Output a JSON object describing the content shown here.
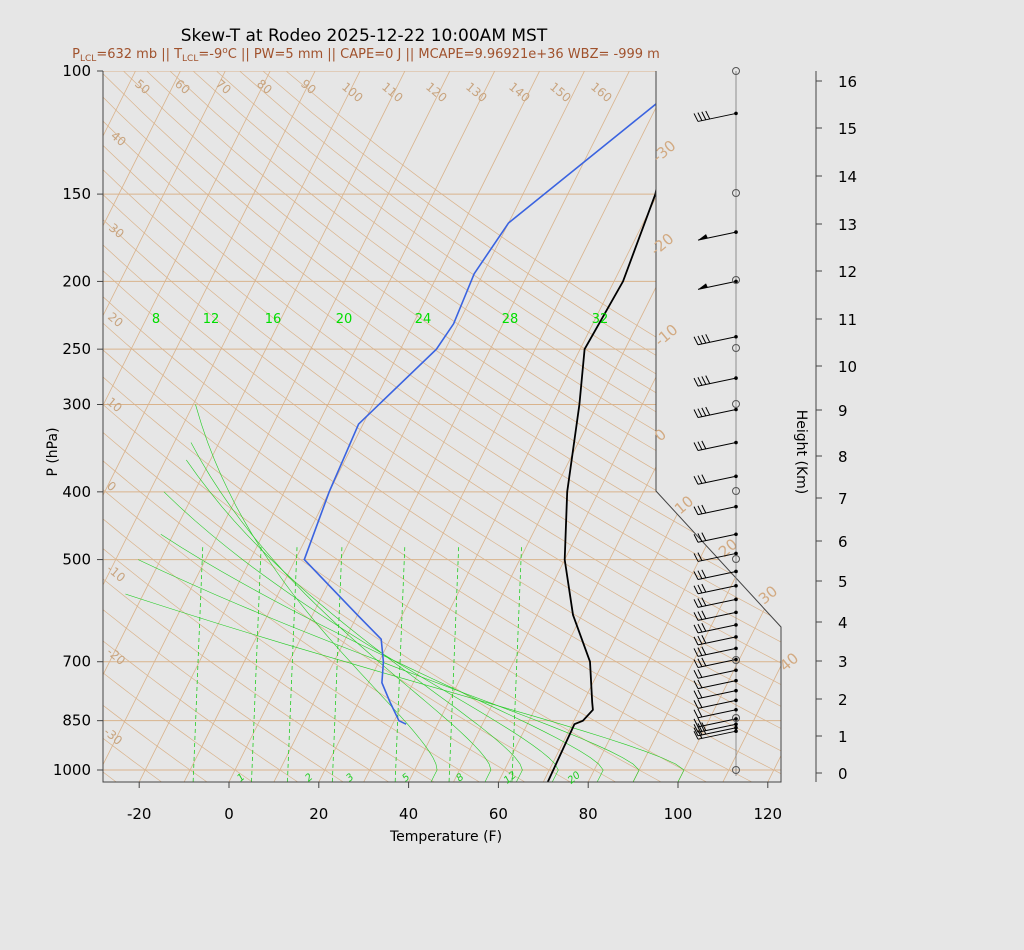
{
  "title": "Skew-T at Rodeo 2025-12-22 10:00AM MST",
  "subtitle": {
    "lcl_p_prefix": "P",
    "lcl_p_sub": "LCL",
    "lcl_p_text": "=632 mb || ",
    "lcl_t_prefix": "T",
    "lcl_t_sub": "LCL",
    "lcl_t_text": "=-9",
    "deg": "o",
    "rest": "C || PW=5 mm || CAPE=0 J || MCAPE=9.96921e+36 WBZ= -999 m"
  },
  "colors": {
    "temperature": "#000000",
    "dewpoint": "#3a63e0",
    "isotherm": "#d9b38c",
    "mixing_ratio": "#22cc22",
    "wind": "#000000"
  },
  "chart_data": {
    "type": "skew-t",
    "xlabel": "Temperature (F)",
    "ylabel": "P (hPa)",
    "y2label": "Height (Km)",
    "xlim": [
      -28,
      125
    ],
    "x_ticks": [
      -20,
      0,
      20,
      40,
      60,
      80,
      100,
      120
    ],
    "ylim_hpa": [
      1040,
      100
    ],
    "y_ticks": [
      100,
      150,
      200,
      250,
      300,
      400,
      500,
      700,
      850,
      1000
    ],
    "height_ticks_km": [
      0,
      1,
      2,
      3,
      4,
      5,
      6,
      7,
      8,
      9,
      10,
      11,
      12,
      13,
      14,
      15,
      16
    ],
    "mixing_ratio_top_labels": [
      "8",
      "12",
      "16",
      "20",
      "24",
      "28",
      "32"
    ],
    "mixing_ratio_bottom_labels": [
      "1",
      "2",
      "3",
      "5",
      "8",
      "12",
      "20"
    ],
    "isotherm_labels_top": [
      "50",
      "60",
      "70",
      "80",
      "90",
      "100",
      "110",
      "120",
      "130",
      "140",
      "150",
      "160"
    ],
    "isotherm_labels_left": [
      "40",
      "30",
      "20",
      "10",
      "0",
      "-10",
      "-20",
      "-30"
    ],
    "isotherm_labels_right": [
      "-30",
      "-20",
      "-10",
      "0",
      "10",
      "20",
      "30",
      "40"
    ],
    "series": [
      {
        "points": [
          [
            1040,
            71
          ],
          [
            860,
            70.5
          ],
          [
            850,
            72
          ],
          [
            820,
            73
          ],
          [
            800,
            72
          ],
          [
            700,
            67
          ],
          [
            600,
            58
          ],
          [
            500,
            50
          ],
          [
            400,
            43
          ],
          [
            300,
            36
          ],
          [
            250,
            31
          ],
          [
            200,
            32
          ],
          [
            150,
            29.5
          ],
          [
            120,
            25
          ],
          [
            100,
            22
          ]
        ]
      },
      {
        "points": [
          [
            860,
            33
          ],
          [
            850,
            31
          ],
          [
            800,
            27
          ],
          [
            750,
            23
          ],
          [
            700,
            21
          ],
          [
            650,
            18
          ],
          [
            600,
            10
          ],
          [
            500,
            -8
          ],
          [
            400,
            -10
          ],
          [
            320,
            -11
          ],
          [
            250,
            -2
          ],
          [
            230,
            -1
          ],
          [
            195,
            -2
          ],
          [
            165,
            0
          ],
          [
            100,
            25
          ]
        ]
      }
    ],
    "wind_barbs": [
      {
        "p": 115,
        "half": 0,
        "full": 4,
        "flag": 0
      },
      {
        "p": 170,
        "half": 0,
        "full": 0,
        "flag": 1
      },
      {
        "p": 200,
        "half": 0,
        "full": 0,
        "flag": 1
      },
      {
        "p": 240,
        "half": 0,
        "full": 4,
        "flag": 0
      },
      {
        "p": 275,
        "half": 0,
        "full": 4,
        "flag": 0
      },
      {
        "p": 305,
        "half": 0,
        "full": 4,
        "flag": 0
      },
      {
        "p": 340,
        "half": 0,
        "full": 3,
        "flag": 0
      },
      {
        "p": 380,
        "half": 0,
        "full": 3,
        "flag": 0
      },
      {
        "p": 420,
        "half": 0,
        "full": 3,
        "flag": 0
      },
      {
        "p": 460,
        "half": 0,
        "full": 3,
        "flag": 0
      },
      {
        "p": 490,
        "half": 0,
        "full": 2,
        "flag": 0
      },
      {
        "p": 520,
        "half": 0,
        "full": 3,
        "flag": 0
      },
      {
        "p": 545,
        "half": 0,
        "full": 3,
        "flag": 0
      },
      {
        "p": 570,
        "half": 0,
        "full": 3,
        "flag": 0
      },
      {
        "p": 595,
        "half": 0,
        "full": 3,
        "flag": 0
      },
      {
        "p": 620,
        "half": 0,
        "full": 3,
        "flag": 0
      },
      {
        "p": 645,
        "half": 0,
        "full": 3,
        "flag": 0
      },
      {
        "p": 670,
        "half": 0,
        "full": 3,
        "flag": 0
      },
      {
        "p": 695,
        "half": 0,
        "full": 3,
        "flag": 0
      },
      {
        "p": 720,
        "half": 0,
        "full": 2,
        "flag": 0
      },
      {
        "p": 745,
        "half": 0,
        "full": 2,
        "flag": 0
      },
      {
        "p": 770,
        "half": 0,
        "full": 2,
        "flag": 0
      },
      {
        "p": 795,
        "half": 0,
        "full": 2,
        "flag": 0
      },
      {
        "p": 820,
        "half": 0,
        "full": 2,
        "flag": 0
      },
      {
        "p": 845,
        "half": 0,
        "full": 2,
        "flag": 0
      },
      {
        "p": 860,
        "half": 0,
        "full": 3,
        "flag": 0
      },
      {
        "p": 870,
        "half": 0,
        "full": 3,
        "flag": 0
      },
      {
        "p": 880,
        "half": 0,
        "full": 2,
        "flag": 0
      }
    ]
  }
}
